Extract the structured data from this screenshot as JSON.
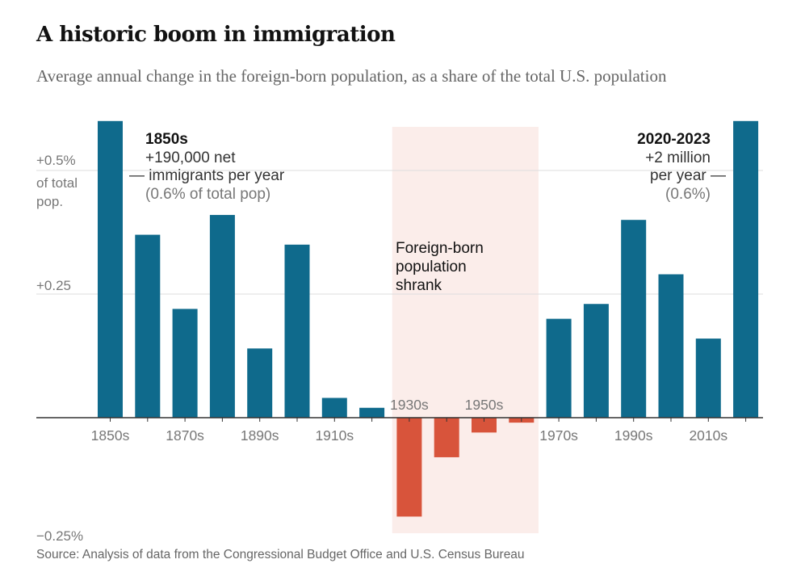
{
  "header": {
    "title": "A historic boom in immigration",
    "subtitle": "Average annual change in the foreign-born population, as a share of the total U.S. population"
  },
  "footer": {
    "source": "Source: Analysis of data from the Congressional Budget Office and U.S. Census Bureau"
  },
  "colors": {
    "positive": "#0F6A8C",
    "negative": "#D8543B",
    "highlight_band": "#FBEDEA",
    "gridline": "#DDDDDD",
    "axis_text": "#777777"
  },
  "chart_data": {
    "type": "bar",
    "categories": [
      "1850s",
      "1860s",
      "1870s",
      "1880s",
      "1890s",
      "1900s",
      "1910s",
      "1920s",
      "1930s",
      "1940s",
      "1950s",
      "1960s",
      "1970s",
      "1980s",
      "1990s",
      "2000s",
      "2010s",
      "2020-2023"
    ],
    "tick_labels": [
      "1850s",
      "1870s",
      "1890s",
      "1910s",
      "1930s",
      "1950s",
      "1970s",
      "1990s",
      "2010s"
    ],
    "values": [
      0.6,
      0.37,
      0.22,
      0.41,
      0.14,
      0.35,
      0.04,
      0.02,
      -0.2,
      -0.08,
      -0.03,
      -0.01,
      0.2,
      0.23,
      0.4,
      0.29,
      0.16,
      0.6
    ],
    "ylim": [
      -0.28,
      0.7
    ],
    "yticks": [
      {
        "value": 0.5,
        "label": "+0.5%"
      },
      {
        "value": 0.25,
        "label": "+0.25"
      },
      {
        "value": -0.25,
        "label": "−0.25%"
      }
    ],
    "ylabel_lines": [
      "of total",
      "pop."
    ],
    "highlight_range": [
      "1930s",
      "1960s"
    ],
    "annotations": {
      "left": {
        "heading": "1850s",
        "lines": [
          "+190,000 net",
          "— immigrants per year",
          "(0.6% of total pop)"
        ]
      },
      "right": {
        "heading": "2020-2023",
        "lines": [
          "+2 million",
          "per year —",
          "(0.6%)"
        ]
      },
      "band": {
        "lines": [
          "Foreign-born",
          "population",
          "shrank"
        ]
      }
    }
  }
}
